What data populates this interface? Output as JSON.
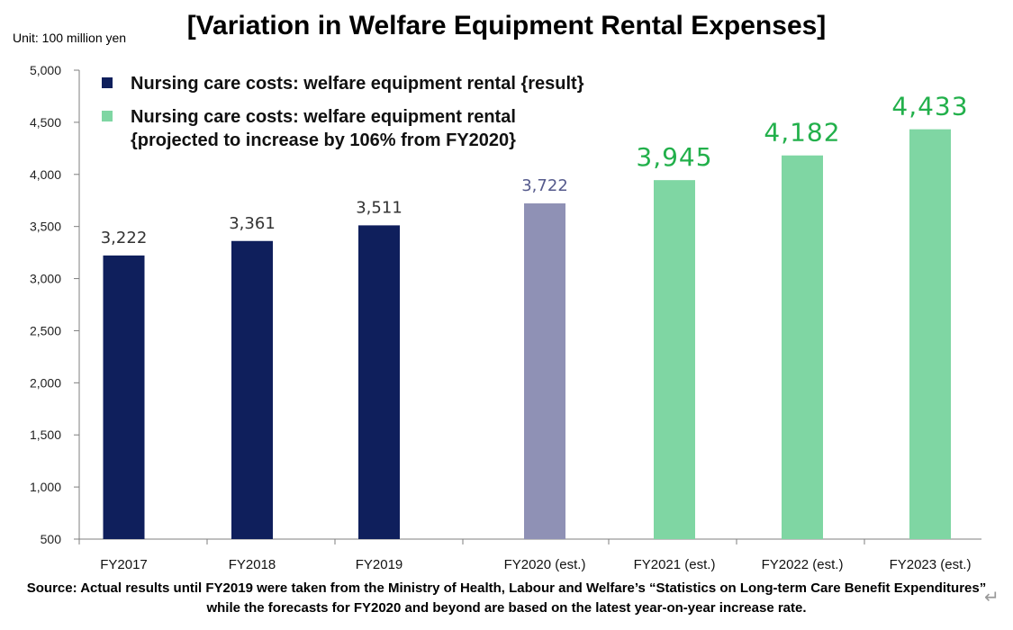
{
  "title": "[Variation in Welfare Equipment Rental Expenses]",
  "unit_label": "Unit: 100 million yen",
  "source_note": "Source: Actual results until FY2019 were taken from the Ministry of Health, Labour and Welfare’s “Statistics on Long-term Care Benefit Expenditures” while the forecasts for FY2020 and beyond are based on the latest year-on-year increase rate.",
  "colors": {
    "result": "#0f1f5c",
    "fy2020": "#8f91b5",
    "projected": "#7fd6a3",
    "label_dark": "#333333",
    "label_fy2020": "#555a8c",
    "label_projected": "#22b04b"
  },
  "chart_data": {
    "type": "bar",
    "title": "[Variation in Welfare Equipment Rental Expenses]",
    "xlabel": "",
    "ylabel": "Unit: 100 million yen",
    "ylim": [
      500,
      5000
    ],
    "y_ticks": [
      500,
      1000,
      1500,
      2000,
      2500,
      3000,
      3500,
      4000,
      4500,
      5000
    ],
    "y_tick_labels": [
      "500",
      "1,000",
      "1,500",
      "2,000",
      "2,500",
      "3,000",
      "3,500",
      "4,000",
      "4,500",
      "5,000"
    ],
    "categories": [
      "FY2017",
      "FY2018",
      "FY2019",
      "FY2020 (est.)",
      "FY2021 (est.)",
      "FY2022 (est.)",
      "FY2023 (est.)"
    ],
    "values": [
      3222,
      3361,
      3511,
      3722,
      3945,
      4182,
      4433
    ],
    "value_labels": [
      "3,222",
      "3,361",
      "3,511",
      "3,722",
      "3,945",
      "4,182",
      "4,433"
    ],
    "bar_groups": [
      "result",
      "result",
      "result",
      "fy2020",
      "projected",
      "projected",
      "projected"
    ],
    "legend": [
      {
        "name": "Nursing care costs: welfare equipment rental {result}",
        "group": "result",
        "lines": [
          "Nursing care costs: welfare equipment rental {result}"
        ]
      },
      {
        "name": "Nursing care costs: welfare equipment rental {projected to increase by 106% from FY2020}",
        "group": "projected",
        "lines": [
          "Nursing care costs: welfare equipment rental",
          "{projected to increase by 106% from FY2020}"
        ]
      }
    ],
    "legend_position": "top-left",
    "grid": false
  }
}
